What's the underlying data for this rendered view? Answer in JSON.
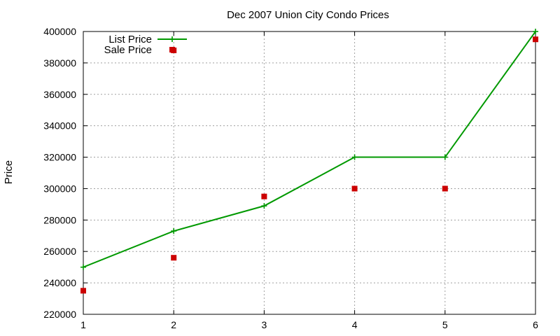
{
  "chart_data": {
    "type": "line",
    "title": "Dec 2007 Union City Condo Prices",
    "xlabel": "",
    "ylabel": "Price",
    "xlim": [
      1,
      6
    ],
    "ylim": [
      220000,
      400000
    ],
    "x_ticks": [
      1,
      2,
      3,
      4,
      5,
      6
    ],
    "y_ticks": [
      220000,
      240000,
      260000,
      280000,
      300000,
      320000,
      340000,
      360000,
      380000,
      400000
    ],
    "grid": true,
    "legend_position": "top-left",
    "series": [
      {
        "name": "List Price",
        "style": "line-with-plus-markers",
        "color": "#009900",
        "x": [
          1,
          2,
          3,
          4,
          5,
          6
        ],
        "values": [
          250000,
          273000,
          289000,
          320000,
          320000,
          400000
        ]
      },
      {
        "name": "Sale Price",
        "style": "square-markers",
        "color": "#cc0000",
        "x": [
          1,
          2,
          2,
          3,
          4,
          5,
          6
        ],
        "values": [
          235000,
          388000,
          256000,
          295000,
          300000,
          300000,
          395000
        ]
      }
    ]
  }
}
